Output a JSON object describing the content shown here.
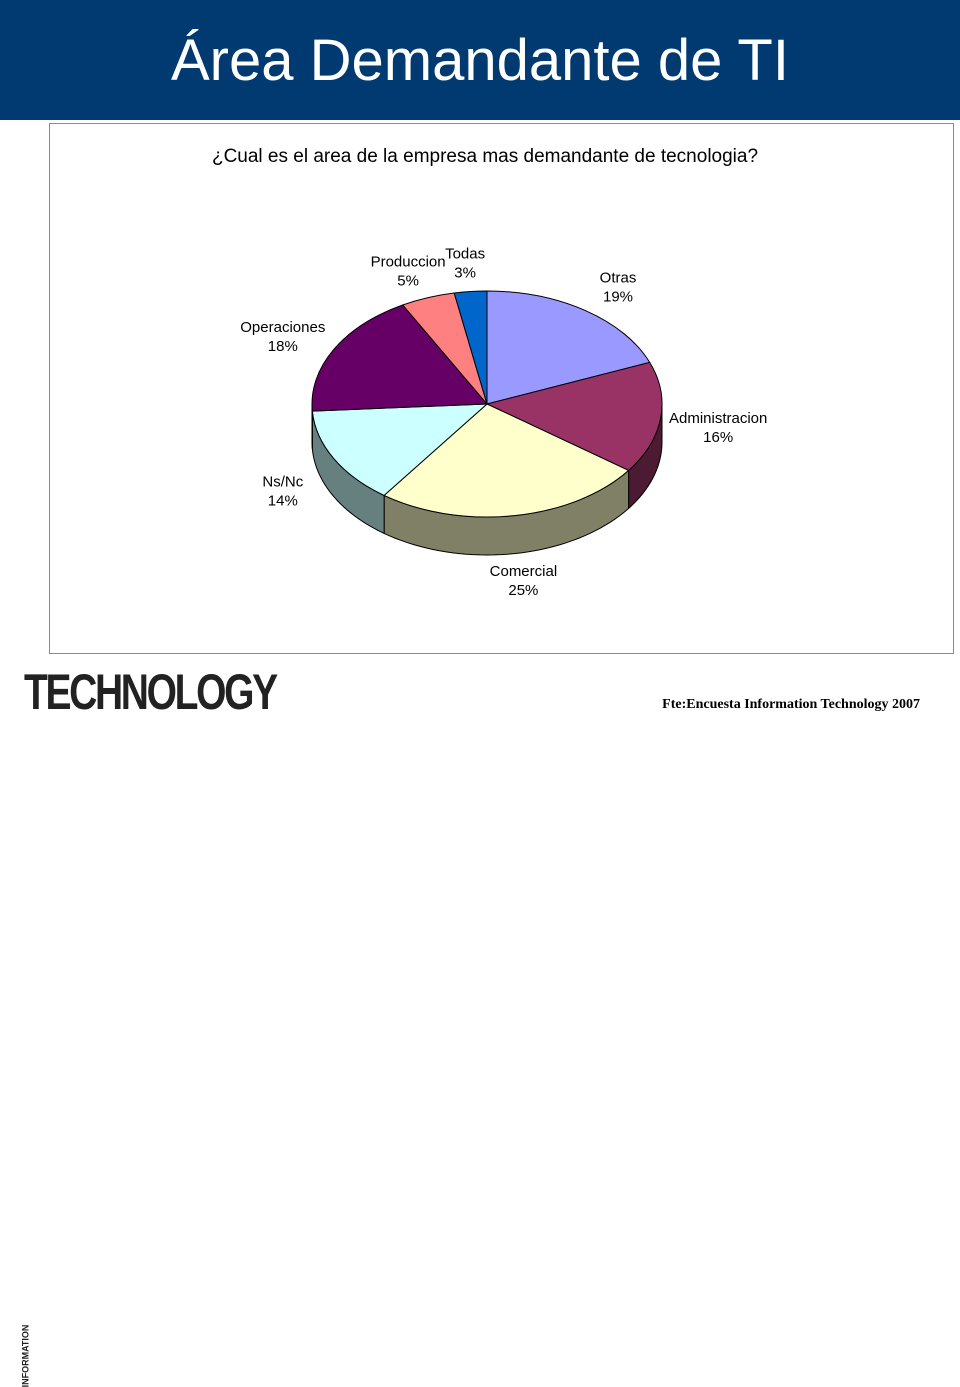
{
  "slide": {
    "title": "Área Demandante de TI",
    "source_note": "Fte:Encuesta Information Technology 2007",
    "logo_main": "TECHNOLOGY",
    "logo_small": "INFORMATION"
  },
  "colors": {
    "header_bg": "#003A70"
  },
  "chart_data": {
    "type": "pie",
    "title": "¿Cual es el area de la empresa mas demandante de tecnologia?",
    "start_angle_deg": 0,
    "direction": "clockwise",
    "slices": [
      {
        "label": "Otras",
        "value": 19,
        "value_label": "19%",
        "color": "#9999FF"
      },
      {
        "label": "Administracion",
        "value": 16,
        "value_label": "16%",
        "color": "#993366"
      },
      {
        "label": "Comercial",
        "value": 25,
        "value_label": "25%",
        "color": "#FFFFCC"
      },
      {
        "label": "Ns/Nc",
        "value": 14,
        "value_label": "14%",
        "color": "#CCFFFF"
      },
      {
        "label": "Operaciones",
        "value": 18,
        "value_label": "18%",
        "color": "#660066"
      },
      {
        "label": "Produccion",
        "value": 5,
        "value_label": "5%",
        "color": "#FF8080"
      },
      {
        "label": "Todas",
        "value": 3,
        "value_label": "3%",
        "color": "#0066CC"
      }
    ]
  }
}
